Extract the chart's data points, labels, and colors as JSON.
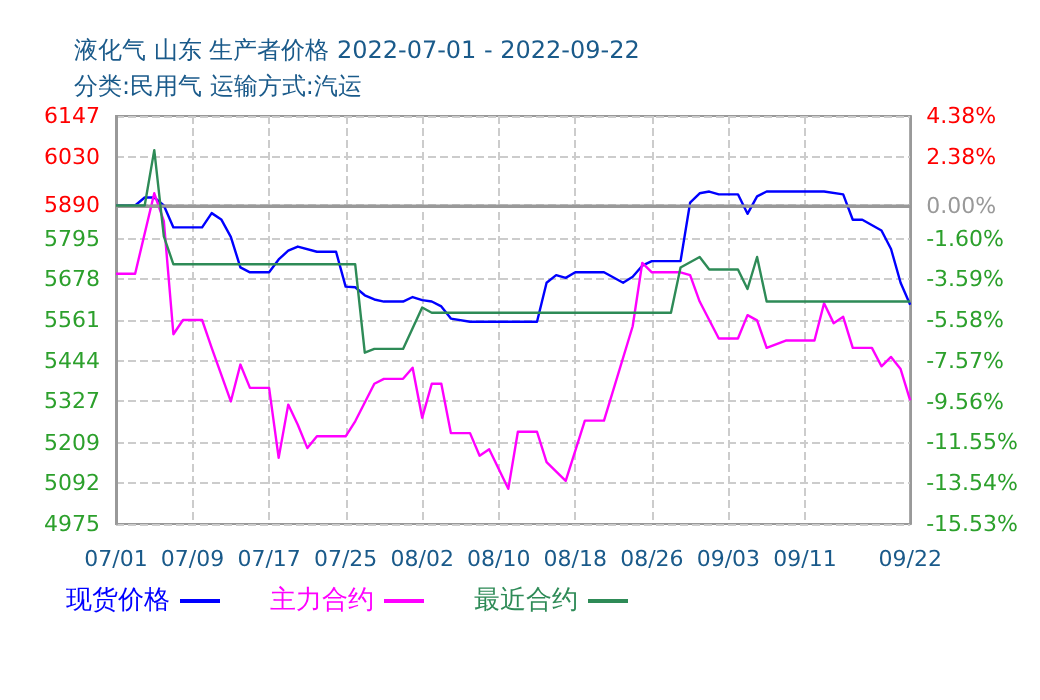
{
  "chart_data": {
    "type": "line",
    "title": "液化气 山东 生产者价格 2022-07-01 - 2022-09-22",
    "subtitle": "分类:民用气 运输方式:汽运",
    "xlim": [
      "2022-07-01",
      "2022-09-22"
    ],
    "xticks": [
      {
        "value": "2022-07-01",
        "label": "07/01"
      },
      {
        "value": "2022-07-09",
        "label": "07/09"
      },
      {
        "value": "2022-07-17",
        "label": "07/17"
      },
      {
        "value": "2022-07-25",
        "label": "07/25"
      },
      {
        "value": "2022-08-02",
        "label": "08/02"
      },
      {
        "value": "2022-08-10",
        "label": "08/10"
      },
      {
        "value": "2022-08-18",
        "label": "08/18"
      },
      {
        "value": "2022-08-26",
        "label": "08/26"
      },
      {
        "value": "2022-09-03",
        "label": "09/03"
      },
      {
        "value": "2022-09-11",
        "label": "09/11"
      },
      {
        "value": "2022-09-22",
        "label": "09/22"
      }
    ],
    "ylim": [
      4975,
      6147
    ],
    "yticks": [
      4975,
      5092,
      5209,
      5327,
      5444,
      5561,
      5678,
      5795,
      5890,
      6030,
      6147
    ],
    "y2lim": [
      -15.53,
      4.38
    ],
    "y2ticks": [
      {
        "value": -15.53,
        "label": "-15.53%"
      },
      {
        "value": -13.54,
        "label": "-13.54%"
      },
      {
        "value": -11.55,
        "label": "-11.55%"
      },
      {
        "value": -9.56,
        "label": "-9.56%"
      },
      {
        "value": -7.57,
        "label": "-7.57%"
      },
      {
        "value": -5.58,
        "label": "-5.58%"
      },
      {
        "value": -3.59,
        "label": "-3.59%"
      },
      {
        "value": -1.6,
        "label": "-1.60%"
      },
      {
        "value": 0,
        "label": "0.00%"
      },
      {
        "value": 2.38,
        "label": "2.38%"
      },
      {
        "value": 4.38,
        "label": "4.38%"
      }
    ],
    "ref_lines": [
      {
        "axis": "y2",
        "value": 0,
        "color": "#999999",
        "line_style": "solid"
      }
    ],
    "grid": true,
    "legend": "bottom",
    "marker": "none",
    "line_style": "solid",
    "series": [
      {
        "name": "现货价格",
        "color": "#0000ff",
        "x": [
          "2022-07-01",
          "2022-07-03",
          "2022-07-04",
          "2022-07-05",
          "2022-07-06",
          "2022-07-07",
          "2022-07-10",
          "2022-07-11",
          "2022-07-12",
          "2022-07-13",
          "2022-07-14",
          "2022-07-15",
          "2022-07-17",
          "2022-07-18",
          "2022-07-19",
          "2022-07-20",
          "2022-07-22",
          "2022-07-24",
          "2022-07-25",
          "2022-07-26",
          "2022-07-27",
          "2022-07-28",
          "2022-07-29",
          "2022-07-31",
          "2022-08-01",
          "2022-08-02",
          "2022-08-03",
          "2022-08-04",
          "2022-08-05",
          "2022-08-07",
          "2022-08-14",
          "2022-08-15",
          "2022-08-16",
          "2022-08-17",
          "2022-08-18",
          "2022-08-21",
          "2022-08-23",
          "2022-08-24",
          "2022-08-25",
          "2022-08-26",
          "2022-08-29",
          "2022-08-30",
          "2022-08-31",
          "2022-09-01",
          "2022-09-02",
          "2022-09-04",
          "2022-09-05",
          "2022-09-06",
          "2022-09-07",
          "2022-09-13",
          "2022-09-15",
          "2022-09-16",
          "2022-09-17",
          "2022-09-19",
          "2022-09-20",
          "2022-09-21",
          "2022-09-22"
        ],
        "values": [
          5890,
          5890,
          5913,
          5913,
          5890,
          5827,
          5827,
          5868,
          5850,
          5800,
          5712,
          5698,
          5698,
          5735,
          5760,
          5772,
          5757,
          5757,
          5657,
          5655,
          5632,
          5620,
          5614,
          5614,
          5627,
          5618,
          5614,
          5600,
          5565,
          5556,
          5556,
          5668,
          5690,
          5682,
          5698,
          5698,
          5668,
          5685,
          5717,
          5730,
          5730,
          5898,
          5925,
          5930,
          5922,
          5922,
          5866,
          5916,
          5930,
          5930,
          5922,
          5849,
          5849,
          5818,
          5765,
          5668,
          5605
        ]
      },
      {
        "name": "主力合约",
        "color": "#ff00ff",
        "x": [
          "2022-07-01",
          "2022-07-03",
          "2022-07-05",
          "2022-07-06",
          "2022-07-07",
          "2022-07-08",
          "2022-07-10",
          "2022-07-11",
          "2022-07-13",
          "2022-07-14",
          "2022-07-15",
          "2022-07-17",
          "2022-07-18",
          "2022-07-19",
          "2022-07-20",
          "2022-07-21",
          "2022-07-22",
          "2022-07-25",
          "2022-07-26",
          "2022-07-28",
          "2022-07-29",
          "2022-07-31",
          "2022-08-01",
          "2022-08-02",
          "2022-08-03",
          "2022-08-04",
          "2022-08-05",
          "2022-08-07",
          "2022-08-08",
          "2022-08-09",
          "2022-08-11",
          "2022-08-12",
          "2022-08-14",
          "2022-08-15",
          "2022-08-17",
          "2022-08-19",
          "2022-08-21",
          "2022-08-24",
          "2022-08-25",
          "2022-08-26",
          "2022-08-29",
          "2022-08-30",
          "2022-08-31",
          "2022-09-02",
          "2022-09-04",
          "2022-09-05",
          "2022-09-06",
          "2022-09-07",
          "2022-09-09",
          "2022-09-12",
          "2022-09-13",
          "2022-09-14",
          "2022-09-15",
          "2022-09-16",
          "2022-09-18",
          "2022-09-19",
          "2022-09-20",
          "2022-09-21",
          "2022-09-22"
        ],
        "values": [
          5694,
          5694,
          5925,
          5845,
          5520,
          5561,
          5561,
          5481,
          5327,
          5433,
          5366,
          5366,
          5165,
          5318,
          5260,
          5193,
          5227,
          5227,
          5270,
          5378,
          5392,
          5392,
          5424,
          5280,
          5378,
          5378,
          5236,
          5236,
          5171,
          5190,
          5076,
          5240,
          5240,
          5153,
          5099,
          5272,
          5272,
          5543,
          5725,
          5698,
          5698,
          5690,
          5614,
          5508,
          5508,
          5575,
          5560,
          5481,
          5502,
          5502,
          5609,
          5552,
          5570,
          5481,
          5481,
          5428,
          5455,
          5420,
          5330
        ]
      },
      {
        "name": "最近合约",
        "color": "#2e8b57",
        "x": [
          "2022-07-01",
          "2022-07-04",
          "2022-07-05",
          "2022-07-06",
          "2022-07-07",
          "2022-07-26",
          "2022-07-27",
          "2022-07-28",
          "2022-07-31",
          "2022-08-02",
          "2022-08-03",
          "2022-08-28",
          "2022-08-29",
          "2022-08-31",
          "2022-09-01",
          "2022-09-04",
          "2022-09-05",
          "2022-09-06",
          "2022-09-07",
          "2022-09-22"
        ],
        "values": [
          5890,
          5890,
          6049,
          5801,
          5721,
          5721,
          5467,
          5478,
          5478,
          5597,
          5582,
          5582,
          5712,
          5742,
          5706,
          5706,
          5650,
          5742,
          5614,
          5614
        ]
      }
    ]
  }
}
